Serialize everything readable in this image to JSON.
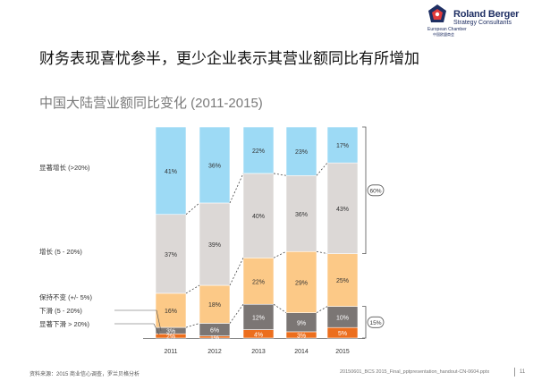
{
  "logo": {
    "brand": "Roland Berger",
    "tagline": "Strategy Consultants",
    "chamber": "European Chamber",
    "chamber_cn": "中国欧盟商会"
  },
  "headline": "财务表现喜忧参半，更少企业表示其营业额同比有所增加",
  "subtitle": "中国大陆营业额同比变化 (2011-2015)",
  "footer": {
    "source": "资料来源：2015 商业信心调查，罗兰贝格分析",
    "file": "20150601_BCS 2015_Final_pptpresentation_handout-CN-0604.pptx",
    "page": "11"
  },
  "colors": {
    "显著增长": "#9ddaf5",
    "增长": "#dcd8d6",
    "保持不变": "#fcc987",
    "下滑": "#7b7674",
    "显著下滑": "#ec6e1d"
  },
  "chart_data": {
    "type": "bar",
    "stacked": true,
    "percent": true,
    "categories": [
      "2011",
      "2012",
      "2013",
      "2014",
      "2015"
    ],
    "series": [
      {
        "name": "显著下滑 > 20%)",
        "values": [
          2,
          1,
          4,
          3,
          5
        ]
      },
      {
        "name": "下滑 (5 - 20%)",
        "values": [
          3,
          6,
          12,
          9,
          10
        ]
      },
      {
        "name": "保持不变 (+/- 5%)",
        "values": [
          16,
          18,
          22,
          29,
          25
        ]
      },
      {
        "name": "增长 (5 - 20%)",
        "values": [
          37,
          39,
          40,
          36,
          43
        ]
      },
      {
        "name": "显著增长 (>20%)",
        "values": [
          41,
          36,
          22,
          23,
          17
        ]
      }
    ],
    "labels": [
      [
        "2%",
        "1%",
        "4%",
        "3%",
        "5%"
      ],
      [
        "3%",
        "6%",
        "12%",
        "9%",
        "10%"
      ],
      [
        "16%",
        "18%",
        "22%",
        "29%",
        "25%"
      ],
      [
        "37%",
        "39%",
        "40%",
        "36%",
        "43%"
      ],
      [
        "41%",
        "36%",
        "22%",
        "23%",
        "17%"
      ]
    ],
    "legend_placement": "left",
    "brackets": [
      {
        "label": "60%",
        "series": [
          "增长 (5 - 20%)",
          "显著增长 (>20%)"
        ],
        "category": "2015"
      },
      {
        "label": "15%",
        "series": [
          "显著下滑 > 20%)",
          "下滑 (5 - 20%)"
        ],
        "category": "2015"
      }
    ],
    "ylim": [
      0,
      100
    ]
  }
}
